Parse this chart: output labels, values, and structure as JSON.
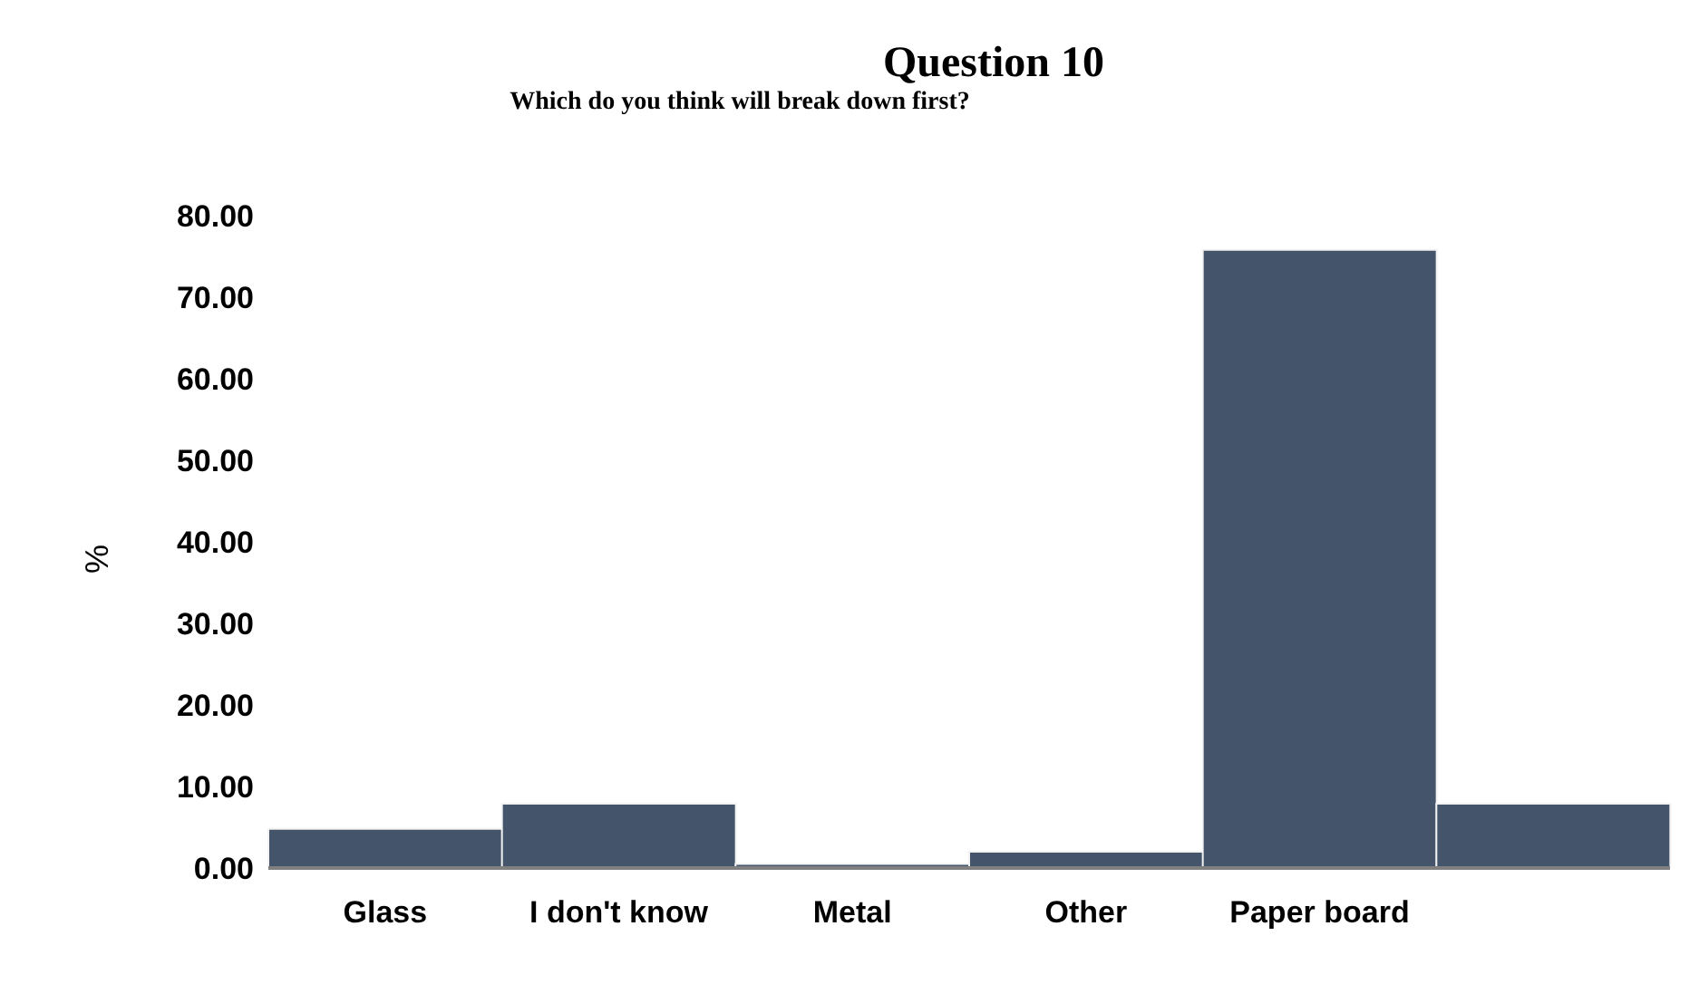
{
  "chart_data": {
    "type": "bar",
    "title": "Question 10",
    "subtitle": "Which do you think will break down first?",
    "ylabel": "%",
    "categories": [
      "Glass",
      "I don't know",
      "Metal",
      "Other",
      "Paper board",
      null
    ],
    "values": [
      4.8,
      7.9,
      0.5,
      2.0,
      75.8,
      7.9
    ],
    "color": "#44546a",
    "ylim": [
      0,
      80
    ],
    "yticks": [
      {
        "value": 0,
        "label": "0.00"
      },
      {
        "value": 10,
        "label": "10.00"
      },
      {
        "value": 20,
        "label": "20.00"
      },
      {
        "value": 30,
        "label": "30.00"
      },
      {
        "value": 40,
        "label": "40.00"
      },
      {
        "value": 50,
        "label": "50.00"
      },
      {
        "value": 60,
        "label": "60.00"
      },
      {
        "value": 70,
        "label": "70.00"
      },
      {
        "value": 80,
        "label": "80.00"
      }
    ],
    "grid": false,
    "legend": false
  }
}
